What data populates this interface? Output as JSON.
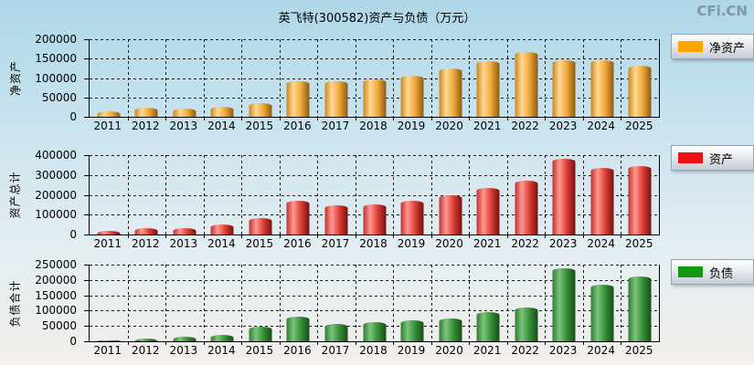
{
  "title": "英飞特(300582)资产与负债（万元）",
  "watermark": "CFi.CN",
  "chart_data": [
    {
      "type": "bar",
      "y_axis_title": "净资产",
      "legend": {
        "label": "净资产",
        "swatch_color": "#ffa400"
      },
      "categories": [
        "2011",
        "2012",
        "2013",
        "2014",
        "2015",
        "2016",
        "2017",
        "2018",
        "2019",
        "2020",
        "2021",
        "2022",
        "2023",
        "2024",
        "2025"
      ],
      "values": [
        14000,
        23000,
        21000,
        27000,
        36000,
        92000,
        92000,
        96000,
        105000,
        124000,
        143000,
        167000,
        146000,
        146000,
        132000
      ],
      "ylim": [
        0,
        200000
      ],
      "yticks": [
        0,
        50000,
        100000,
        150000,
        200000
      ],
      "grid": "dashed",
      "legend_position": "right",
      "bar_gradient": [
        "#c8871e",
        "#ffd894",
        "#f2a93c",
        "#8a5c10"
      ]
    },
    {
      "type": "bar",
      "y_axis_title": "资产总计",
      "legend": {
        "label": "资产",
        "swatch_color": "#ee1111"
      },
      "categories": [
        "2011",
        "2012",
        "2013",
        "2014",
        "2015",
        "2016",
        "2017",
        "2018",
        "2019",
        "2020",
        "2021",
        "2022",
        "2023",
        "2024",
        "2025"
      ],
      "values": [
        18000,
        32000,
        32000,
        49000,
        81000,
        169000,
        145000,
        152000,
        170000,
        196000,
        236000,
        272000,
        382000,
        334000,
        345000
      ],
      "ylim": [
        0,
        400000
      ],
      "yticks": [
        0,
        100000,
        200000,
        300000,
        400000
      ],
      "grid": "dashed",
      "legend_position": "right",
      "bar_gradient": [
        "#c03030",
        "#ff9a90",
        "#e04038",
        "#751010"
      ]
    },
    {
      "type": "bar",
      "y_axis_title": "负债合计",
      "legend": {
        "label": "负债",
        "swatch_color": "#119911"
      },
      "categories": [
        "2011",
        "2012",
        "2013",
        "2014",
        "2015",
        "2016",
        "2017",
        "2018",
        "2019",
        "2020",
        "2021",
        "2022",
        "2023",
        "2024",
        "2025"
      ],
      "values": [
        4000,
        10000,
        14000,
        21000,
        48000,
        80000,
        57000,
        62000,
        68000,
        74000,
        96000,
        110000,
        237000,
        185000,
        212000
      ],
      "ylim": [
        0,
        250000
      ],
      "yticks": [
        0,
        50000,
        100000,
        150000,
        200000,
        250000
      ],
      "grid": "dashed",
      "legend_position": "right",
      "bar_gradient": [
        "#2e7d32",
        "#7cc47c",
        "#389038",
        "#174d17"
      ]
    }
  ]
}
